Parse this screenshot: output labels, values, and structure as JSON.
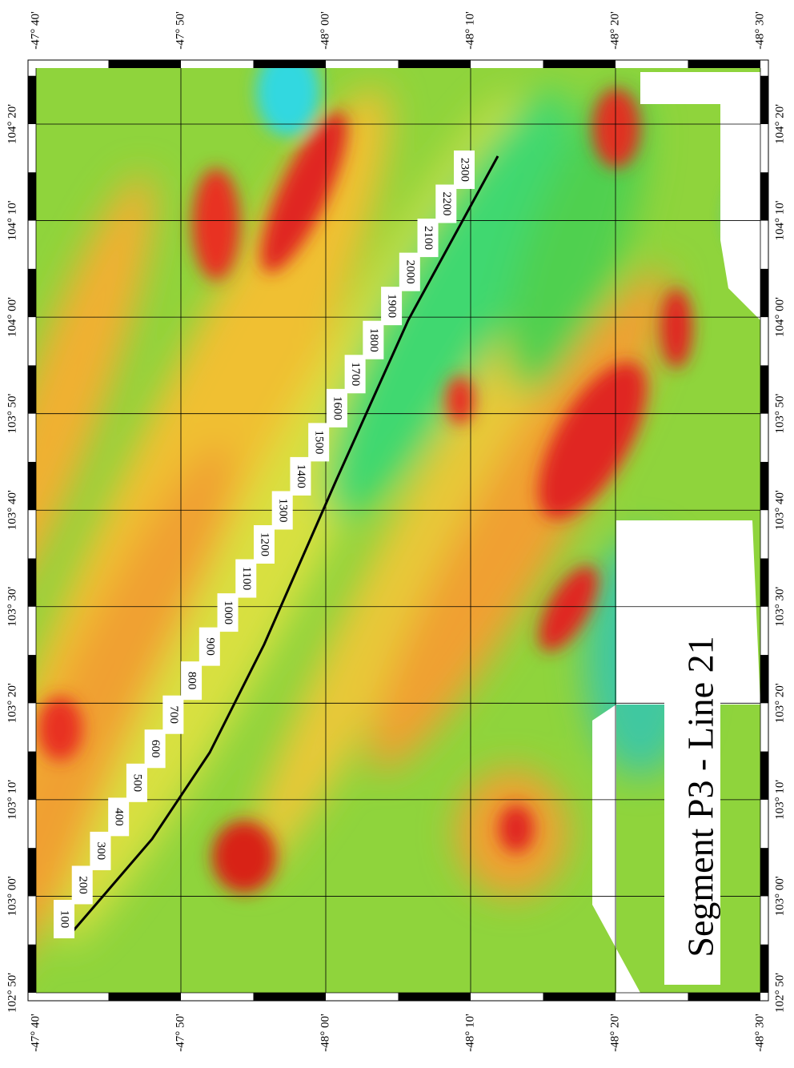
{
  "map": {
    "title": "Segment P3 - Line 21",
    "lat_labels": [
      "-47° 40'",
      "-47° 50'",
      "-48° 00'",
      "-48° 10'",
      "-48° 20'",
      "-48° 30'"
    ],
    "lon_labels": [
      "104° 20'",
      "104° 10'",
      "104° 00'",
      "103° 50'",
      "103° 40'",
      "103° 30'",
      "103° 20'",
      "103° 10'",
      "103° 00'",
      "102° 50'"
    ],
    "track_labels": [
      "100",
      "200",
      "300",
      "400",
      "500",
      "600",
      "700",
      "800",
      "900",
      "1000",
      "1100",
      "1200",
      "1300",
      "1400",
      "1500",
      "1600",
      "1700",
      "1800",
      "1900",
      "2000",
      "2100",
      "2200",
      "2300"
    ]
  }
}
